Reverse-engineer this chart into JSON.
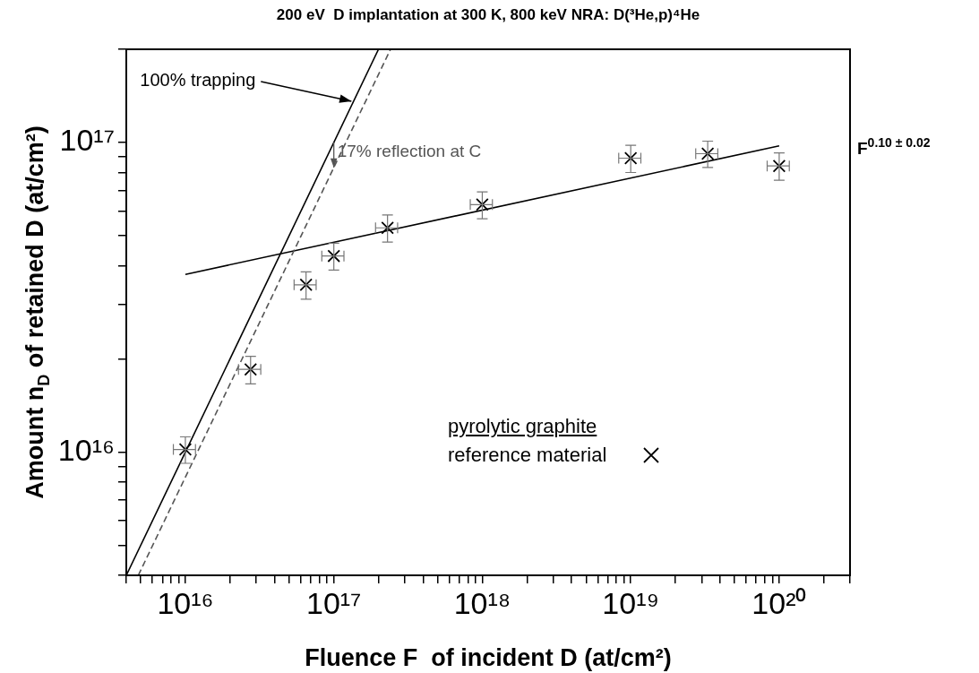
{
  "chart_data": {
    "type": "scatter",
    "title": "200 eV  D implantation at 300 K, 800 keV NRA: D(³He,p)⁴He",
    "xlabel": "Fluence F  of incident D (at/cm²)",
    "ylabel": "Amount n$_{D}$ of retained D (at/cm²)",
    "log": "xy",
    "grid": false,
    "legend": "bottom right",
    "legend_title": "pyrolytic graphite",
    "xlim": [
      4000000000000000.0,
      3e+20
    ],
    "ylim": [
      4000000000000000.0,
      2e+17
    ],
    "xticks": [
      {
        "value": 4000000000000000.0,
        "label": null
      },
      {
        "value": 5000000000000000.0,
        "label": null
      },
      {
        "value": 6000000000000000.0,
        "label": null
      },
      {
        "value": 7000000000000000.0,
        "label": null
      },
      {
        "value": 8000000000000000.0,
        "label": null
      },
      {
        "value": 9000000000000000.0,
        "label": null
      },
      {
        "value": 1e+16,
        "label": "10¹⁶"
      },
      {
        "value": 2e+16,
        "label": null
      },
      {
        "value": 3e+16,
        "label": null
      },
      {
        "value": 4e+16,
        "label": null
      },
      {
        "value": 5e+16,
        "label": null
      },
      {
        "value": 6e+16,
        "label": null
      },
      {
        "value": 7e+16,
        "label": null
      },
      {
        "value": 8e+16,
        "label": null
      },
      {
        "value": 9e+16,
        "label": null
      },
      {
        "value": 1e+17,
        "label": "10¹⁷"
      },
      {
        "value": 2e+17,
        "label": null
      },
      {
        "value": 3e+17,
        "label": null
      },
      {
        "value": 4e+17,
        "label": null
      },
      {
        "value": 5e+17,
        "label": null
      },
      {
        "value": 6e+17,
        "label": null
      },
      {
        "value": 7e+17,
        "label": null
      },
      {
        "value": 8e+17,
        "label": null
      },
      {
        "value": 9e+17,
        "label": null
      },
      {
        "value": 1e+18,
        "label": "10¹⁸"
      },
      {
        "value": 2e+18,
        "label": null
      },
      {
        "value": 3e+18,
        "label": null
      },
      {
        "value": 4e+18,
        "label": null
      },
      {
        "value": 5e+18,
        "label": null
      },
      {
        "value": 6e+18,
        "label": null
      },
      {
        "value": 7e+18,
        "label": null
      },
      {
        "value": 8e+18,
        "label": null
      },
      {
        "value": 9e+18,
        "label": null
      },
      {
        "value": 1e+19,
        "label": "10¹⁹"
      },
      {
        "value": 2e+19,
        "label": null
      },
      {
        "value": 3e+19,
        "label": null
      },
      {
        "value": 4e+19,
        "label": null
      },
      {
        "value": 5e+19,
        "label": null
      },
      {
        "value": 6e+19,
        "label": null
      },
      {
        "value": 7e+19,
        "label": null
      },
      {
        "value": 8e+19,
        "label": null
      },
      {
        "value": 9e+19,
        "label": null
      },
      {
        "value": 1e+20,
        "label": "10²⁰"
      },
      {
        "value": 2e+20,
        "label": null
      },
      {
        "value": 3e+20,
        "label": null
      }
    ],
    "yticks": [
      {
        "value": 4000000000000000.0,
        "label": null
      },
      {
        "value": 5000000000000000.0,
        "label": null
      },
      {
        "value": 6000000000000000.0,
        "label": null
      },
      {
        "value": 7000000000000000.0,
        "label": null
      },
      {
        "value": 8000000000000000.0,
        "label": null
      },
      {
        "value": 9000000000000000.0,
        "label": null
      },
      {
        "value": 1e+16,
        "label": "10¹⁶"
      },
      {
        "value": 2e+16,
        "label": null
      },
      {
        "value": 3e+16,
        "label": null
      },
      {
        "value": 4e+16,
        "label": null
      },
      {
        "value": 5e+16,
        "label": null
      },
      {
        "value": 6e+16,
        "label": null
      },
      {
        "value": 7e+16,
        "label": null
      },
      {
        "value": 8e+16,
        "label": null
      },
      {
        "value": 9e+16,
        "label": null
      },
      {
        "value": 1e+17,
        "label": "10¹⁷"
      },
      {
        "value": 2e+17,
        "label": null
      }
    ],
    "series": [
      {
        "type": "line",
        "color": "#000000",
        "line_style": "solid",
        "x": [
          4000000000000000.0,
          2e+17
        ],
        "values": [
          4000000000000000.0,
          2e+17
        ]
      },
      {
        "type": "line",
        "color": "#555555",
        "line_style": "dashed",
        "x": [
          4820000000000000.0,
          2.41e+17
        ],
        "values": [
          4000000000000000.0,
          2e+17
        ]
      },
      {
        "type": "line",
        "color": "#000000",
        "line_style": "solid",
        "x": [
          1e+16,
          1e+20
        ],
        "values": [
          3.75e+16,
          9.75e+16
        ]
      },
      {
        "type": "scatter",
        "name": "reference material",
        "color": "#000000",
        "marker": "cross",
        "x": [
          1e+16,
          2.75e+16,
          6.5e+16,
          1e+17,
          2.3e+17,
          1e+18,
          1e+19,
          3.3e+19,
          1e+20
        ],
        "values": [
          1.02e+16,
          1.85e+16,
          3.47e+16,
          4.3e+16,
          5.3e+16,
          6.3e+16,
          8.9e+16,
          9.2e+16,
          8.4e+16
        ],
        "errors": [
          1000000000000000.0,
          1900000000000000.0,
          3500000000000000.0,
          4300000000000000.0,
          5300000000000000.0,
          6300000000000000.0,
          9000000000000000.0,
          9000000000000000.0,
          8500000000000000.0
        ],
        "xerrors": [
          1700000000000000.0,
          4700000000000000.0,
          1.1e+16,
          1.7e+16,
          3.9e+16,
          1.7e+17,
          1.7e+18,
          5.6e+18,
          1.7e+19
        ]
      }
    ],
    "annotations": [
      {
        "text": "100% trapping",
        "x": 1.35e+17,
        "y": 1.35e+17
      },
      {
        "text": "17% reflection at C",
        "x": 1e+17,
        "y": 8.3e+16
      },
      "F$^{0.10 ± 0.02}$"
    ]
  }
}
